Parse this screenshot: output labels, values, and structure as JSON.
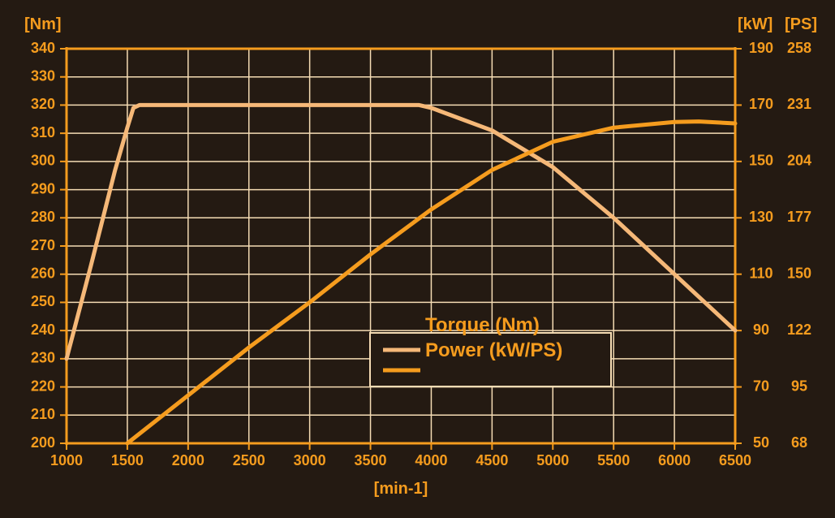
{
  "chart_data": {
    "type": "line",
    "x_unit": "[min-1]",
    "y_left_unit": "[Nm]",
    "y_right_units": [
      "[kW]",
      "[PS]"
    ],
    "x_ticks": [
      1000,
      1500,
      2000,
      2500,
      3000,
      3500,
      4000,
      4500,
      5000,
      5500,
      6000,
      6500
    ],
    "x_tick_labels": [
      "1000",
      "1500",
      "2000",
      "2500",
      "3000",
      "3500",
      "4000",
      "4500",
      "5000",
      "5500",
      "6000",
      "6500"
    ],
    "y_left_ticks": [
      200,
      210,
      220,
      230,
      240,
      250,
      260,
      270,
      280,
      290,
      300,
      310,
      320,
      330,
      340
    ],
    "y_left_tick_labels": [
      "200",
      "210",
      "220",
      "230",
      "240",
      "250",
      "260",
      "270",
      "280",
      "290",
      "300",
      "310",
      "320",
      "330",
      "340"
    ],
    "y_right_kw_ticks": [
      50,
      70,
      90,
      110,
      130,
      150,
      170,
      190
    ],
    "y_right_kw_tick_labels": [
      "50",
      "70",
      "90",
      "110",
      "130",
      "150",
      "170",
      "190"
    ],
    "y_right_ps_tick_labels": [
      "68",
      "95",
      "122",
      "150",
      "177",
      "204",
      "231",
      "258"
    ],
    "xlim": [
      1000,
      6500
    ],
    "ylim_left": [
      200,
      340
    ],
    "ylim_right": [
      50,
      190
    ],
    "grid": true,
    "legend_position": "center-right",
    "series": [
      {
        "name": "Torque (Nm)",
        "axis": "left",
        "color": "#f5b878",
        "x": [
          1000,
          1200,
          1400,
          1500,
          1550,
          1600,
          2000,
          3000,
          3900,
          4000,
          4500,
          5000,
          5500,
          6000,
          6500
        ],
        "y": [
          230,
          263,
          297,
          312,
          319,
          320,
          320,
          320,
          320,
          319,
          311,
          298,
          280,
          260,
          240
        ]
      },
      {
        "name": "Power (kW/PS)",
        "axis": "right",
        "color": "#f59c1e",
        "x": [
          1500,
          2000,
          2500,
          3000,
          3500,
          4000,
          4500,
          5000,
          5500,
          6000,
          6200,
          6500
        ],
        "y": [
          50,
          67,
          84,
          100,
          117,
          133,
          147,
          157,
          162,
          164,
          164.2,
          163.5
        ]
      }
    ]
  },
  "colors": {
    "background": "#241a12",
    "grid": "#f5dcb4",
    "axis": "#f59c1e",
    "tick_text": "#f59c1e",
    "legend_border": "#f5dcb4",
    "legend_text": "#f59c1e"
  }
}
